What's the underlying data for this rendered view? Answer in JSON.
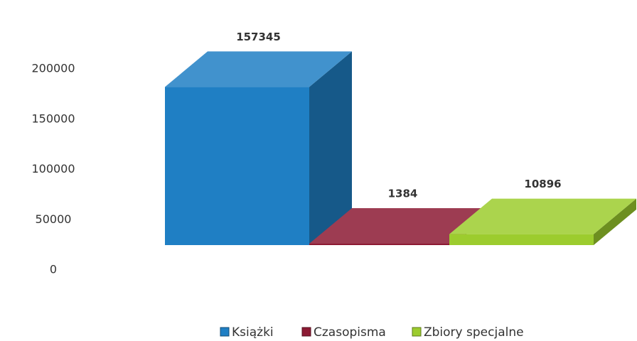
{
  "chart_data": {
    "type": "bar3d",
    "series": [
      {
        "name": "Książki",
        "color": "#1f7fc4",
        "values": [
          157345
        ]
      },
      {
        "name": "Czasopisma",
        "color": "#8c1a33",
        "values": [
          1384
        ]
      },
      {
        "name": "Zbiory specjalne",
        "color": "#9ccc2e",
        "values": [
          10896
        ]
      }
    ],
    "ylim": [
      0,
      200000
    ],
    "yticks": [
      0,
      50000,
      100000,
      150000,
      200000
    ],
    "grid": false
  }
}
